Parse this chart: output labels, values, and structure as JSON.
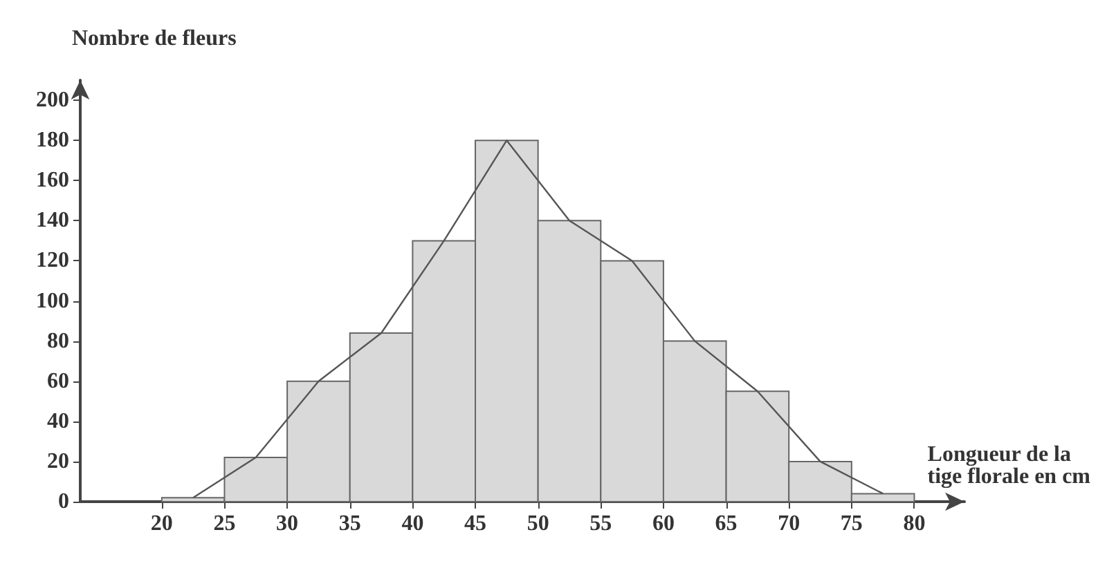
{
  "chart_data": {
    "type": "histogram",
    "xlabel": "Longueur de la tige florale en cm",
    "ylabel": "Nombre de fleurs",
    "bins": [
      20,
      25,
      30,
      35,
      40,
      45,
      50,
      55,
      60,
      65,
      70,
      75,
      80
    ],
    "values": [
      2,
      22,
      60,
      84,
      130,
      180,
      140,
      120,
      80,
      55,
      20,
      4
    ],
    "color": "#d9d9d9",
    "series": [
      {
        "type": "line",
        "color": "#555555",
        "marker": "none",
        "x": [
          22.5,
          27.5,
          32.5,
          37.5,
          42.5,
          47.5,
          52.5,
          57.5,
          62.5,
          67.5,
          72.5,
          77.5
        ],
        "values": [
          2,
          22,
          60,
          84,
          130,
          180,
          140,
          120,
          80,
          55,
          20,
          4
        ]
      }
    ],
    "xlim": [
      13.5,
      84
    ],
    "xticks": [
      20,
      25,
      30,
      35,
      40,
      45,
      50,
      55,
      60,
      65,
      70,
      75,
      80
    ],
    "ylim": [
      0,
      210
    ],
    "yticks": [
      0,
      20,
      40,
      60,
      80,
      100,
      120,
      140,
      160,
      180,
      200
    ],
    "grid": false
  }
}
